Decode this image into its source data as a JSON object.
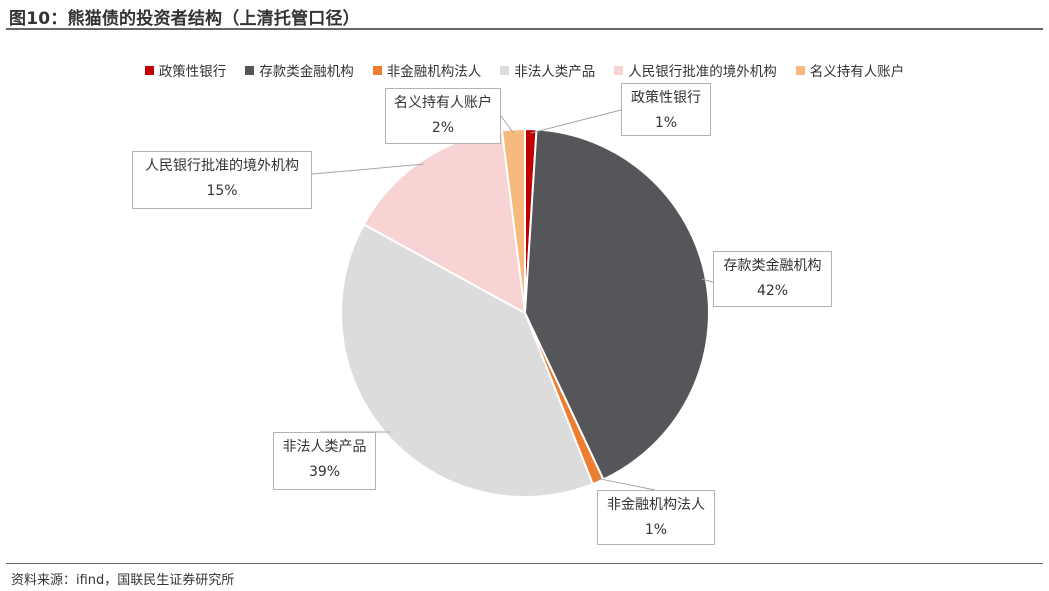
{
  "figure": {
    "title": "图10：熊猫债的投资者结构（上清托管口径）",
    "source": "资料来源：ifind，国联民生证券研究所"
  },
  "chart_data": {
    "type": "pie",
    "title": "",
    "legend_position": "top",
    "slices": [
      {
        "label": "政策性银行",
        "value": 1,
        "value_label": "1%",
        "color": "#C00000"
      },
      {
        "label": "存款类金融机构",
        "value": 42,
        "value_label": "42%",
        "color": "#54565A"
      },
      {
        "label": "非金融机构法人",
        "value": 1,
        "value_label": "1%",
        "color": "#ED7D31"
      },
      {
        "label": "非法人类产品",
        "value": 39,
        "value_label": "39%",
        "color": "#DCDCDC"
      },
      {
        "label": "人民银行批准的境外机构",
        "value": 15,
        "value_label": "15%",
        "color": "#F8D3D3"
      },
      {
        "label": "名义持有人账户",
        "value": 2,
        "value_label": "2%",
        "color": "#F7B97D"
      }
    ]
  }
}
